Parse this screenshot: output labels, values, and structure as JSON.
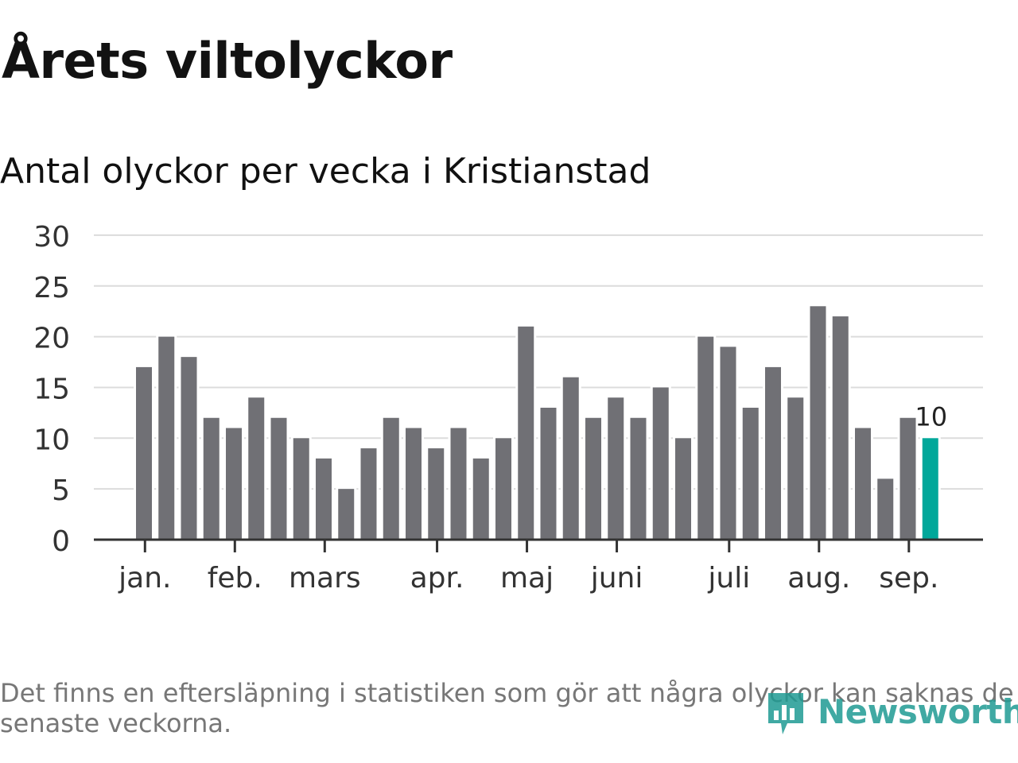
{
  "title": "Årets viltolyckor",
  "subtitle": "Antal olyckor per vecka i Kristianstad",
  "footnote": "Det finns en eftersläpning i statistiken som gör att några olyckor kan saknas de senaste veckorna.",
  "brand": {
    "name": "Newsworthy",
    "icon": "newsworthy-logo-icon",
    "color": "#1f9b93"
  },
  "chart_data": {
    "type": "bar",
    "values": [
      17,
      20,
      18,
      12,
      11,
      14,
      12,
      10,
      8,
      5,
      9,
      12,
      11,
      9,
      11,
      8,
      10,
      21,
      13,
      16,
      12,
      14,
      12,
      15,
      10,
      20,
      19,
      13,
      17,
      14,
      23,
      22,
      11,
      6,
      12,
      10
    ],
    "month_labels": [
      "jan.",
      "feb.",
      "mars",
      "apr.",
      "maj",
      "juni",
      "juli",
      "aug.",
      "sep."
    ],
    "yticks": [
      0,
      5,
      10,
      15,
      20,
      25,
      30
    ],
    "ylim": [
      0,
      30
    ],
    "highlight_last": true,
    "highlight_label": "10",
    "bar_color": "#707075",
    "highlight_color": "#00a79a",
    "grid": true
  }
}
